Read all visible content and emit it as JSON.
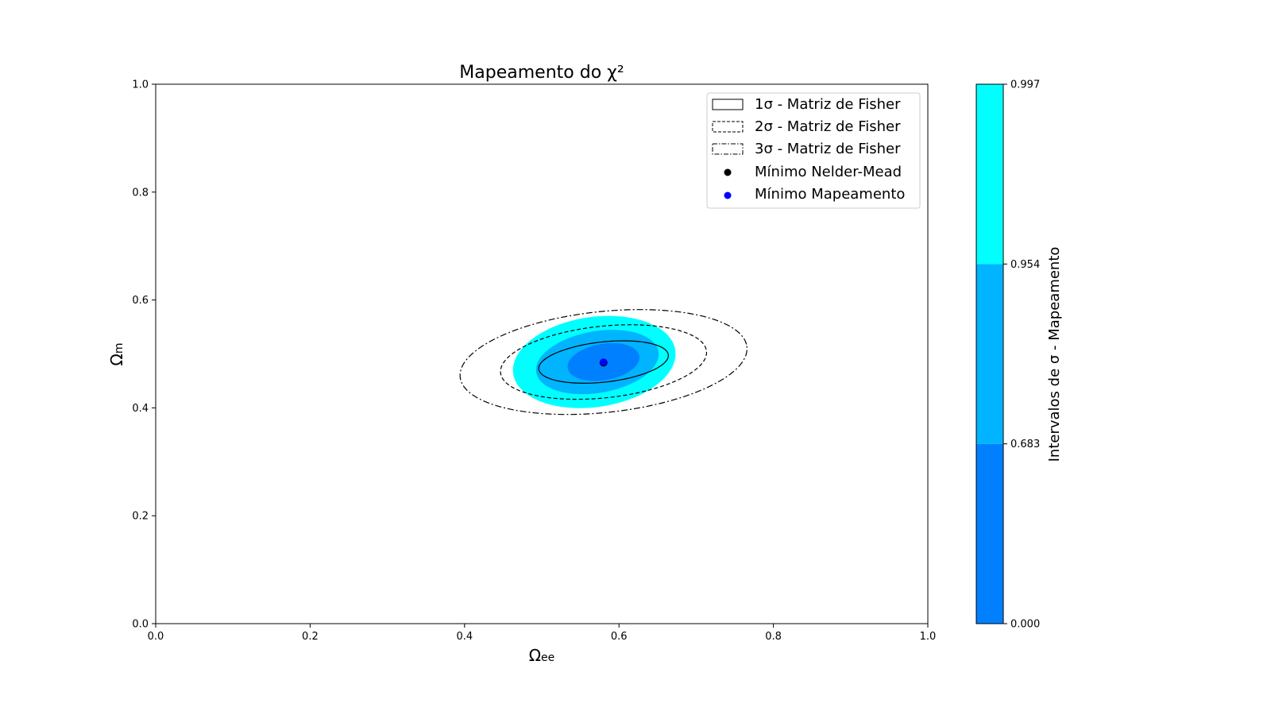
{
  "chart_data": {
    "type": "contour",
    "title": "Mapeamento do χ²",
    "xlabel": {
      "main": "Ω",
      "sub": "ee"
    },
    "ylabel": {
      "main": "Ω",
      "sub": "m"
    },
    "xlim": [
      0.0,
      1.0
    ],
    "ylim": [
      0.0,
      1.0
    ],
    "x_ticks": [
      0.0,
      0.2,
      0.4,
      0.6,
      0.8,
      1.0
    ],
    "y_ticks": [
      0.0,
      0.2,
      0.4,
      0.6,
      0.8,
      1.0
    ],
    "x_tick_labels": [
      "0.0",
      "0.2",
      "0.4",
      "0.6",
      "0.8",
      "1.0"
    ],
    "y_tick_labels": [
      "0.0",
      "0.2",
      "0.4",
      "0.6",
      "0.8",
      "1.0"
    ],
    "grid": false,
    "legend_position": "upper right",
    "contour_regions": [
      {
        "level": "0.997",
        "color": "#00ffff",
        "cx": 0.568,
        "cy": 0.485,
        "a": 0.108,
        "b": 0.082,
        "angle_deg": 20
      },
      {
        "level": "0.954",
        "color": "#00b4ff",
        "cx": 0.572,
        "cy": 0.485,
        "a": 0.082,
        "b": 0.056,
        "angle_deg": 20
      },
      {
        "level": "0.683",
        "color": "#0080ff",
        "cx": 0.58,
        "cy": 0.485,
        "a": 0.048,
        "b": 0.033,
        "angle_deg": 20
      }
    ],
    "fisher_ellipses": [
      {
        "legend": "1σ - Matriz de Fisher",
        "style": "solid",
        "cx": 0.58,
        "cy": 0.485,
        "a": 0.085,
        "b": 0.037,
        "angle_deg": 10
      },
      {
        "legend": "2σ - Matriz de Fisher",
        "style": "dashed",
        "cx": 0.58,
        "cy": 0.485,
        "a": 0.135,
        "b": 0.066,
        "angle_deg": 10
      },
      {
        "legend": "3σ - Matriz de Fisher",
        "style": "dashdot",
        "cx": 0.58,
        "cy": 0.485,
        "a": 0.188,
        "b": 0.093,
        "angle_deg": 10
      }
    ],
    "points": [
      {
        "legend": "Mínimo Nelder-Mead",
        "x": 0.58,
        "y": 0.484,
        "color": "#000000"
      },
      {
        "legend": "Mínimo Mapeamento",
        "x": 0.58,
        "y": 0.485,
        "color": "#0000ff"
      }
    ],
    "colorbar": {
      "label": "Intervalos de σ - Mapeamento",
      "boundaries": [
        0.0,
        0.683,
        0.954,
        0.997
      ],
      "tick_labels": [
        "0.000",
        "0.683",
        "0.954",
        "0.997"
      ],
      "colors": [
        "#0080ff",
        "#00b4ff",
        "#00ffff"
      ]
    }
  }
}
